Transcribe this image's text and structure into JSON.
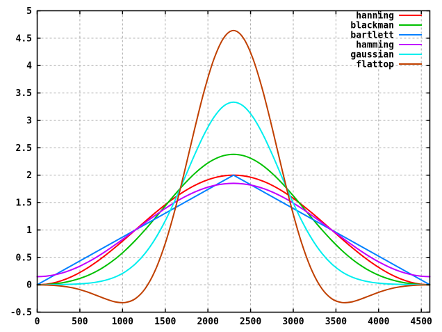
{
  "chart_data": {
    "type": "line",
    "title": "",
    "xlabel": "",
    "ylabel": "",
    "xlim": [
      0,
      4600
    ],
    "ylim": [
      -0.5,
      5
    ],
    "xticks": [
      0,
      500,
      1000,
      1500,
      2000,
      2500,
      3000,
      3500,
      4000,
      4500
    ],
    "xtick_labels": [
      "0",
      "500",
      "1000",
      "1500",
      "2000",
      "2500",
      "3000",
      "3500",
      "4000",
      "4500"
    ],
    "yticks": [
      -0.5,
      0,
      0.5,
      1,
      1.5,
      2,
      2.5,
      3,
      3.5,
      4,
      4.5,
      5
    ],
    "ytick_labels": [
      "-0.5",
      "0",
      "0.5",
      "1",
      "1.5",
      "2",
      "2.5",
      "3",
      "3.5",
      "4",
      "4.5",
      "5"
    ],
    "grid": true,
    "legend_position": "top-right",
    "background_color": "#ffffff",
    "grid_color": "#aaaaaa",
    "axis_color": "#000000",
    "text_color": "#000000",
    "x": [
      0,
      115,
      230,
      345,
      460,
      575,
      690,
      805,
      920,
      1035,
      1150,
      1265,
      1380,
      1495,
      1610,
      1725,
      1840,
      1955,
      2070,
      2185,
      2300,
      2415,
      2530,
      2645,
      2760,
      2875,
      2990,
      3105,
      3220,
      3335,
      3450,
      3565,
      3680,
      3795,
      3910,
      4025,
      4140,
      4255,
      4370,
      4485,
      4600
    ],
    "series": [
      {
        "name": "hanning",
        "color": "#ff0000",
        "interpolation": "smooth",
        "values": [
          0,
          0.012,
          0.049,
          0.109,
          0.191,
          0.293,
          0.412,
          0.546,
          0.691,
          0.844,
          1,
          1.156,
          1.309,
          1.454,
          1.588,
          1.707,
          1.809,
          1.891,
          1.951,
          1.988,
          2,
          1.988,
          1.951,
          1.891,
          1.809,
          1.707,
          1.588,
          1.454,
          1.309,
          1.156,
          1,
          0.844,
          0.691,
          0.546,
          0.412,
          0.293,
          0.191,
          0.109,
          0.049,
          0.012,
          0
        ]
      },
      {
        "name": "blackman",
        "color": "#00c000",
        "interpolation": "smooth",
        "values": [
          0,
          0.005,
          0.022,
          0.051,
          0.096,
          0.158,
          0.241,
          0.348,
          0.478,
          0.633,
          0.81,
          1.005,
          1.214,
          1.429,
          1.641,
          1.842,
          2.022,
          2.173,
          2.286,
          2.357,
          2.381,
          2.357,
          2.286,
          2.173,
          2.022,
          1.842,
          1.641,
          1.429,
          1.214,
          1.005,
          0.81,
          0.633,
          0.478,
          0.348,
          0.241,
          0.158,
          0.096,
          0.051,
          0.022,
          0.005,
          0
        ]
      },
      {
        "name": "bartlett",
        "color": "#0080ff",
        "interpolation": "linear",
        "values": [
          0,
          0.1,
          0.2,
          0.3,
          0.4,
          0.5,
          0.6,
          0.7,
          0.8,
          0.9,
          1,
          1.1,
          1.2,
          1.3,
          1.4,
          1.5,
          1.6,
          1.7,
          1.8,
          1.9,
          2,
          1.9,
          1.8,
          1.7,
          1.6,
          1.5,
          1.4,
          1.3,
          1.2,
          1.1,
          1,
          0.9,
          0.8,
          0.7,
          0.6,
          0.5,
          0.4,
          0.3,
          0.2,
          0.1,
          0
        ]
      },
      {
        "name": "hamming",
        "color": "#c000ff",
        "interpolation": "smooth",
        "values": [
          0.148,
          0.159,
          0.19,
          0.241,
          0.311,
          0.398,
          0.499,
          0.613,
          0.737,
          0.867,
          1,
          1.133,
          1.263,
          1.387,
          1.501,
          1.602,
          1.689,
          1.759,
          1.81,
          1.841,
          1.852,
          1.841,
          1.81,
          1.759,
          1.689,
          1.602,
          1.501,
          1.387,
          1.263,
          1.133,
          1,
          0.867,
          0.737,
          0.613,
          0.499,
          0.398,
          0.311,
          0.241,
          0.19,
          0.159,
          0.148
        ]
      },
      {
        "name": "gaussian",
        "color": "#00eeee",
        "interpolation": "smooth",
        "values": [
          0.001,
          0.001,
          0.003,
          0.006,
          0.013,
          0.025,
          0.047,
          0.085,
          0.146,
          0.241,
          0.381,
          0.575,
          0.831,
          1.151,
          1.526,
          1.938,
          2.356,
          2.742,
          3.056,
          3.262,
          3.333,
          3.262,
          3.056,
          2.742,
          2.356,
          1.938,
          1.526,
          1.151,
          0.831,
          0.575,
          0.381,
          0.241,
          0.146,
          0.085,
          0.047,
          0.025,
          0.013,
          0.006,
          0.003,
          0.001,
          0.001
        ]
      },
      {
        "name": "flattop",
        "color": "#c04000",
        "interpolation": "smooth",
        "values": [
          -0.001,
          -0.005,
          -0.016,
          -0.037,
          -0.072,
          -0.125,
          -0.191,
          -0.26,
          -0.314,
          -0.323,
          -0.254,
          -0.071,
          0.253,
          0.729,
          1.344,
          2.06,
          2.815,
          3.529,
          4.116,
          4.504,
          4.639,
          4.504,
          4.116,
          3.529,
          2.815,
          2.06,
          1.344,
          0.729,
          0.253,
          -0.071,
          -0.254,
          -0.323,
          -0.314,
          -0.26,
          -0.191,
          -0.125,
          -0.072,
          -0.037,
          -0.016,
          -0.005,
          -0.001
        ]
      }
    ]
  }
}
